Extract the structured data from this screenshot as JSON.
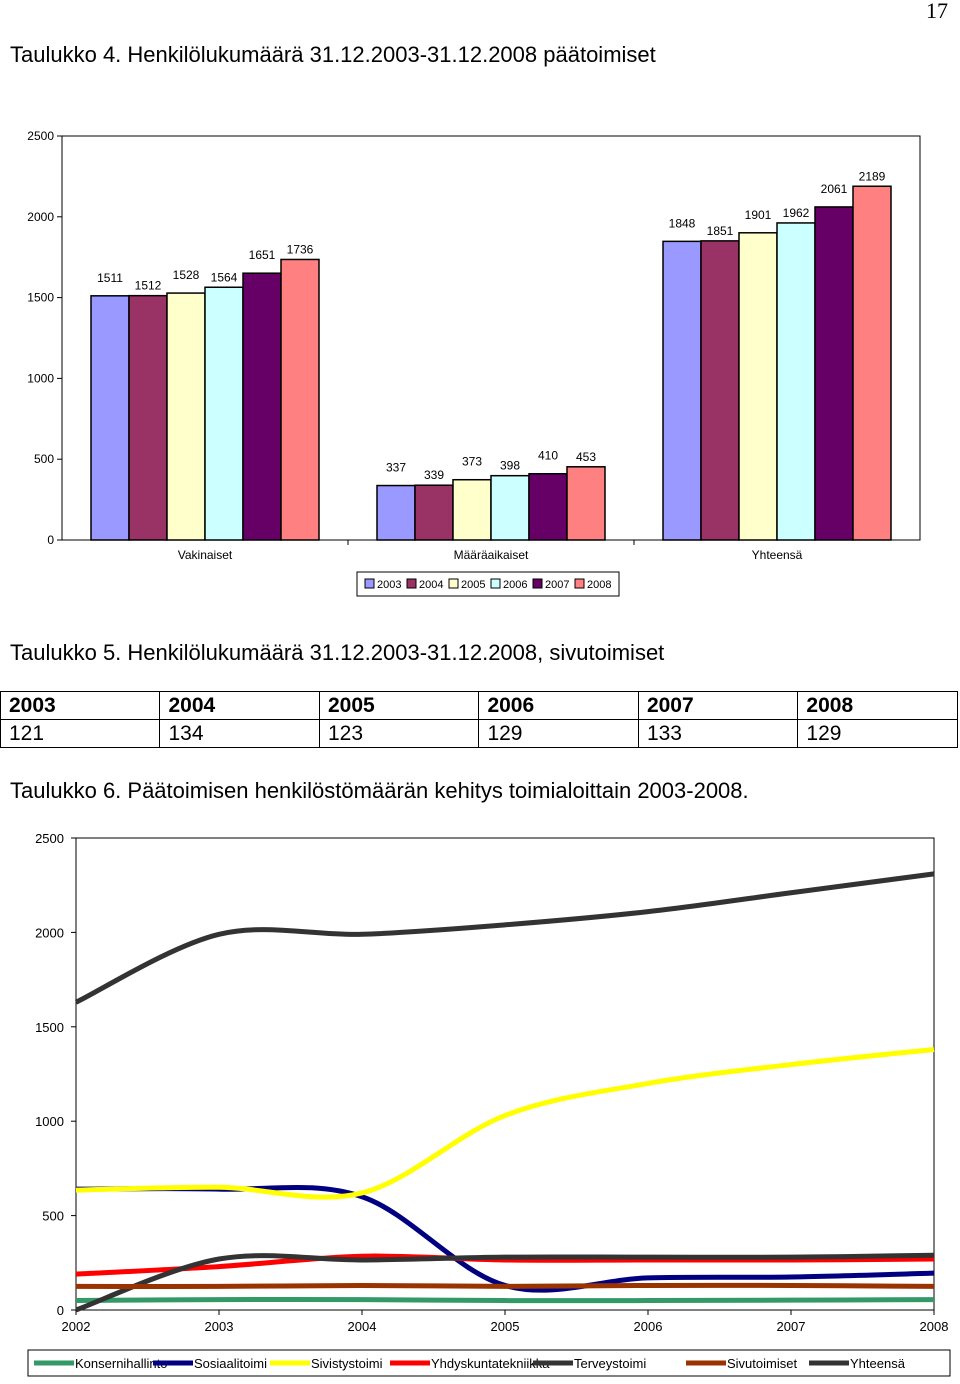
{
  "page_number": "17",
  "table4": {
    "title": "Taulukko 4. Henkilölukumäärä 31.12.2003-31.12.2008 päätoimiset"
  },
  "table5": {
    "title": "Taulukko 5. Henkilölukumäärä 31.12.2003-31.12.2008, sivutoimiset",
    "headers": [
      "2003",
      "2004",
      "2005",
      "2006",
      "2007",
      "2008"
    ],
    "values": [
      "121",
      "134",
      "123",
      "129",
      "133",
      "129"
    ]
  },
  "table6": {
    "title": "Taulukko 6. Päätoimisen henkilöstömäärän kehitys toimialoittain 2003-2008."
  },
  "chart_data": [
    {
      "type": "bar",
      "title": "",
      "categories": [
        "Vakinaiset",
        "Määräaikaiset",
        "Yhteensä"
      ],
      "series": [
        {
          "name": "2003",
          "values": [
            1511,
            337,
            1848
          ],
          "color": "#9999ff"
        },
        {
          "name": "2004",
          "values": [
            1512,
            339,
            1851
          ],
          "color": "#993366"
        },
        {
          "name": "2005",
          "values": [
            1528,
            373,
            1901
          ],
          "color": "#ffffcc"
        },
        {
          "name": "2006",
          "values": [
            1564,
            398,
            1962
          ],
          "color": "#ccffff"
        },
        {
          "name": "2007",
          "values": [
            1651,
            410,
            2061
          ],
          "color": "#660066"
        },
        {
          "name": "2008",
          "values": [
            1736,
            453,
            2189
          ],
          "color": "#ff8080"
        }
      ],
      "yticks": [
        "0",
        "500",
        "1000",
        "1500",
        "2000",
        "2500"
      ],
      "ylim": [
        0,
        2500
      ],
      "grid": false,
      "legend": "bottom"
    },
    {
      "type": "line",
      "title": "",
      "x": [
        2002,
        2003,
        2004,
        2005,
        2006,
        2007,
        2008
      ],
      "xticks": [
        "2002",
        "2003",
        "2004",
        "2005",
        "2006",
        "2007",
        "2008"
      ],
      "series": [
        {
          "name": "Konsernihallinto",
          "values": [
            50,
            55,
            55,
            50,
            50,
            52,
            55
          ],
          "color": "#339966"
        },
        {
          "name": "Sosiaalitoimi",
          "values": [
            640,
            640,
            600,
            130,
            170,
            175,
            195
          ],
          "color": "#000080"
        },
        {
          "name": "Sivistystoimi",
          "values": [
            635,
            650,
            620,
            1030,
            1200,
            1300,
            1380
          ],
          "color": "#ffff00"
        },
        {
          "name": "Yhdyskuntatekniikka",
          "values": [
            190,
            230,
            285,
            265,
            265,
            265,
            270
          ],
          "color": "#ff0000"
        },
        {
          "name": "Terveystoimi",
          "values": [
            0,
            270,
            265,
            280,
            280,
            280,
            290
          ],
          "color": "#333333"
        },
        {
          "name": "Sivutoimiset",
          "values": [
            125,
            125,
            130,
            125,
            130,
            130,
            125
          ],
          "color": "#993300"
        },
        {
          "name": "Yhteensä",
          "values": [
            1630,
            1990,
            1990,
            2040,
            2110,
            2210,
            2310
          ],
          "color": "#333333"
        }
      ],
      "yticks": [
        "0",
        "500",
        "1000",
        "1500",
        "2000",
        "2500"
      ],
      "ylim": [
        0,
        2500
      ],
      "grid": false,
      "legend": "bottom"
    }
  ]
}
